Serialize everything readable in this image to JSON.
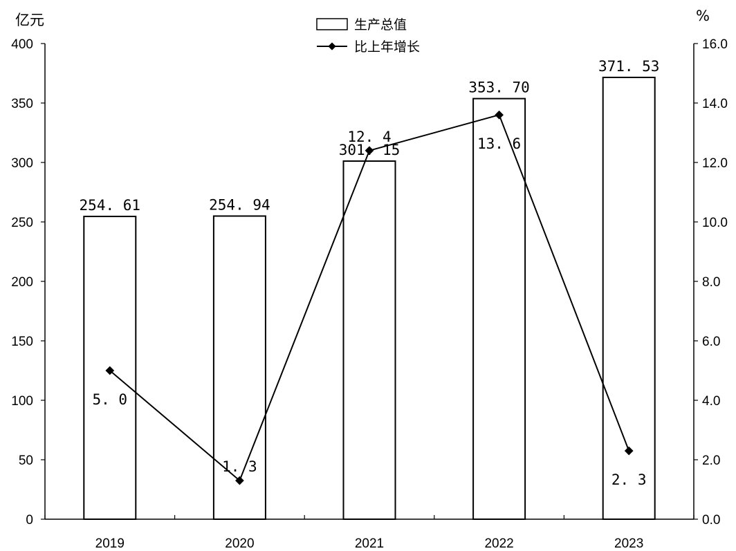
{
  "chart_data": {
    "type": "bar",
    "categories": [
      "2019",
      "2020",
      "2021",
      "2022",
      "2023"
    ],
    "left_axis": {
      "unit": "亿元",
      "ylim": [
        0,
        400
      ],
      "ticks": [
        "0",
        "50",
        "100",
        "150",
        "200",
        "250",
        "300",
        "350",
        "400"
      ]
    },
    "right_axis": {
      "unit": "%",
      "ylim": [
        0,
        16
      ],
      "ticks": [
        "0.0",
        "2.0",
        "4.0",
        "6.0",
        "8.0",
        "10.0",
        "12.0",
        "14.0",
        "16.0"
      ]
    },
    "series": [
      {
        "name": "生产总值",
        "type": "bar",
        "axis": "left",
        "values": [
          254.61,
          254.94,
          301.15,
          353.7,
          371.53
        ],
        "labels": [
          "254. 61",
          "254. 94",
          "301. 15",
          "353. 70",
          "371. 53"
        ]
      },
      {
        "name": "比上年增长",
        "type": "line",
        "axis": "right",
        "values": [
          5.0,
          1.3,
          12.4,
          13.6,
          2.3
        ],
        "labels": [
          "5. 0",
          "1. 3",
          "12. 4",
          "13. 6",
          "2. 3"
        ]
      }
    ],
    "legend": "top-center",
    "grid": false
  }
}
